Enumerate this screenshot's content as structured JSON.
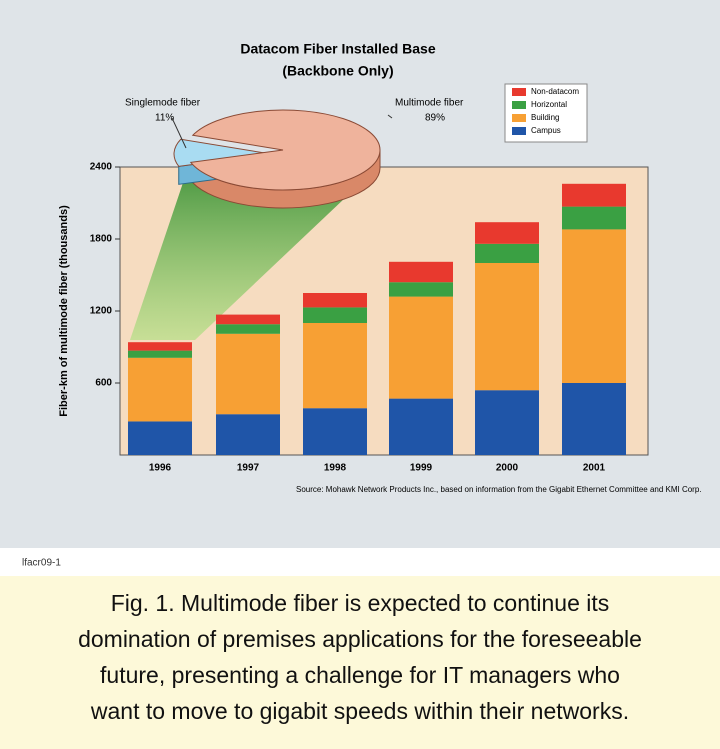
{
  "chart_data": {
    "type": "stacked-bar",
    "title": "Datacom Fiber Installed Base",
    "subtitle": "(Backbone Only)",
    "ylabel": "Fiber-km of multimode fiber (thousands)",
    "categories": [
      "1996",
      "1997",
      "1998",
      "1999",
      "2000",
      "2001"
    ],
    "series": [
      {
        "name": "Campus",
        "color": "#1f55a8",
        "values": [
          280,
          340,
          390,
          470,
          540,
          600
        ]
      },
      {
        "name": "Building",
        "color": "#f7a034",
        "values": [
          530,
          670,
          710,
          850,
          1060,
          1280
        ]
      },
      {
        "name": "Horizontal",
        "color": "#3aa043",
        "values": [
          60,
          80,
          130,
          120,
          160,
          190
        ]
      },
      {
        "name": "Non-datacom",
        "color": "#e8392e",
        "values": [
          70,
          80,
          120,
          170,
          180,
          190
        ]
      }
    ],
    "ylim": [
      0,
      2400
    ],
    "yticks": [
      600,
      1200,
      1800,
      2400
    ],
    "source": "Source: Mohawk Network Products Inc., based on information from the Gigabit Ethernet Committee and KMI Corp.",
    "inset": {
      "type": "pie",
      "labels": [
        "Singlemode fiber",
        "Multimode fiber"
      ],
      "values": [
        11,
        89
      ],
      "value_labels": [
        "11%",
        "89%"
      ],
      "colors": [
        "#a9dcf2",
        "#efb39c"
      ]
    }
  },
  "figure_id": "lfacr09-1",
  "caption": [
    "Fig. 1. Multimode fiber is expected to continue its",
    "domination of premises applications for the foreseeable",
    "future, presenting a challenge for IT managers who",
    "want to move to gigabit speeds within their networks."
  ]
}
